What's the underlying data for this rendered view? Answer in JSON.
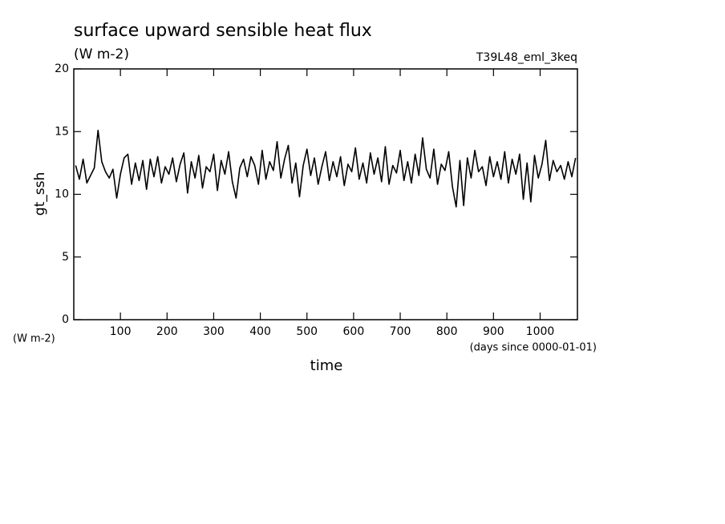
{
  "chart_data": {
    "type": "line",
    "title": "surface upward sensible heat flux",
    "subtitle": "(W m-2)",
    "run_label": "T39L48_eml_3keq",
    "ylabel": "gt_ssh",
    "yunits": "(W m-2)",
    "xlabel": "time",
    "xunits": "(days since 0000-01-01)",
    "xlim": [
      0,
      1080
    ],
    "ylim": [
      0,
      20
    ],
    "xticks": [
      100,
      200,
      300,
      400,
      500,
      600,
      700,
      800,
      900,
      1000
    ],
    "yticks": [
      0,
      5,
      10,
      15,
      20
    ],
    "x": [
      4,
      12,
      20,
      28,
      36,
      44,
      52,
      60,
      68,
      76,
      84,
      92,
      100,
      108,
      116,
      124,
      132,
      140,
      148,
      156,
      164,
      172,
      180,
      188,
      196,
      204,
      212,
      220,
      228,
      236,
      244,
      252,
      260,
      268,
      276,
      284,
      292,
      300,
      308,
      316,
      324,
      332,
      340,
      348,
      356,
      364,
      372,
      380,
      388,
      396,
      404,
      412,
      420,
      428,
      436,
      444,
      452,
      460,
      468,
      476,
      484,
      492,
      500,
      508,
      516,
      524,
      532,
      540,
      548,
      556,
      564,
      572,
      580,
      588,
      596,
      604,
      612,
      620,
      628,
      636,
      644,
      652,
      660,
      668,
      676,
      684,
      692,
      700,
      708,
      716,
      724,
      732,
      740,
      748,
      756,
      764,
      772,
      780,
      788,
      796,
      804,
      812,
      820,
      828,
      836,
      844,
      852,
      860,
      868,
      876,
      884,
      892,
      900,
      908,
      916,
      924,
      932,
      940,
      948,
      956,
      964,
      972,
      980,
      988,
      996,
      1004,
      1012,
      1020,
      1028,
      1036,
      1044,
      1052,
      1060,
      1068,
      1076
    ],
    "series": [
      {
        "name": "gt_ssh",
        "color": "#000000",
        "values": [
          12.3,
          11.2,
          12.8,
          10.9,
          11.5,
          12.1,
          15.1,
          12.6,
          11.8,
          11.3,
          12.0,
          9.7,
          11.6,
          12.9,
          13.2,
          10.8,
          12.5,
          11.1,
          12.7,
          10.4,
          12.8,
          11.4,
          13.0,
          10.9,
          12.2,
          11.6,
          12.9,
          11.0,
          12.4,
          13.3,
          10.1,
          12.6,
          11.3,
          13.1,
          10.5,
          12.2,
          11.8,
          13.2,
          10.3,
          12.7,
          11.6,
          13.4,
          11.0,
          9.7,
          12.1,
          12.8,
          11.4,
          13.0,
          12.3,
          10.8,
          13.5,
          11.2,
          12.6,
          11.9,
          14.2,
          11.3,
          12.8,
          13.9,
          10.9,
          12.5,
          9.8,
          12.3,
          13.6,
          11.5,
          12.9,
          10.8,
          12.2,
          13.4,
          11.1,
          12.6,
          11.4,
          13.0,
          10.7,
          12.4,
          11.8,
          13.7,
          11.2,
          12.5,
          10.9,
          13.3,
          11.6,
          12.9,
          11.0,
          13.8,
          10.8,
          12.3,
          11.7,
          13.5,
          11.1,
          12.6,
          10.9,
          13.2,
          11.5,
          14.5,
          12.0,
          11.3,
          13.6,
          10.8,
          12.4,
          11.9,
          13.4,
          10.6,
          9.0,
          12.7,
          9.1,
          12.9,
          11.3,
          13.5,
          11.8,
          12.2,
          10.7,
          13.0,
          11.4,
          12.6,
          11.2,
          13.4,
          10.9,
          12.8,
          11.6,
          13.2,
          9.6,
          12.5,
          9.4,
          13.1,
          11.3,
          12.4,
          14.3,
          11.1,
          12.7,
          11.8,
          12.3,
          11.2,
          12.6,
          11.4,
          12.9
        ]
      }
    ]
  }
}
